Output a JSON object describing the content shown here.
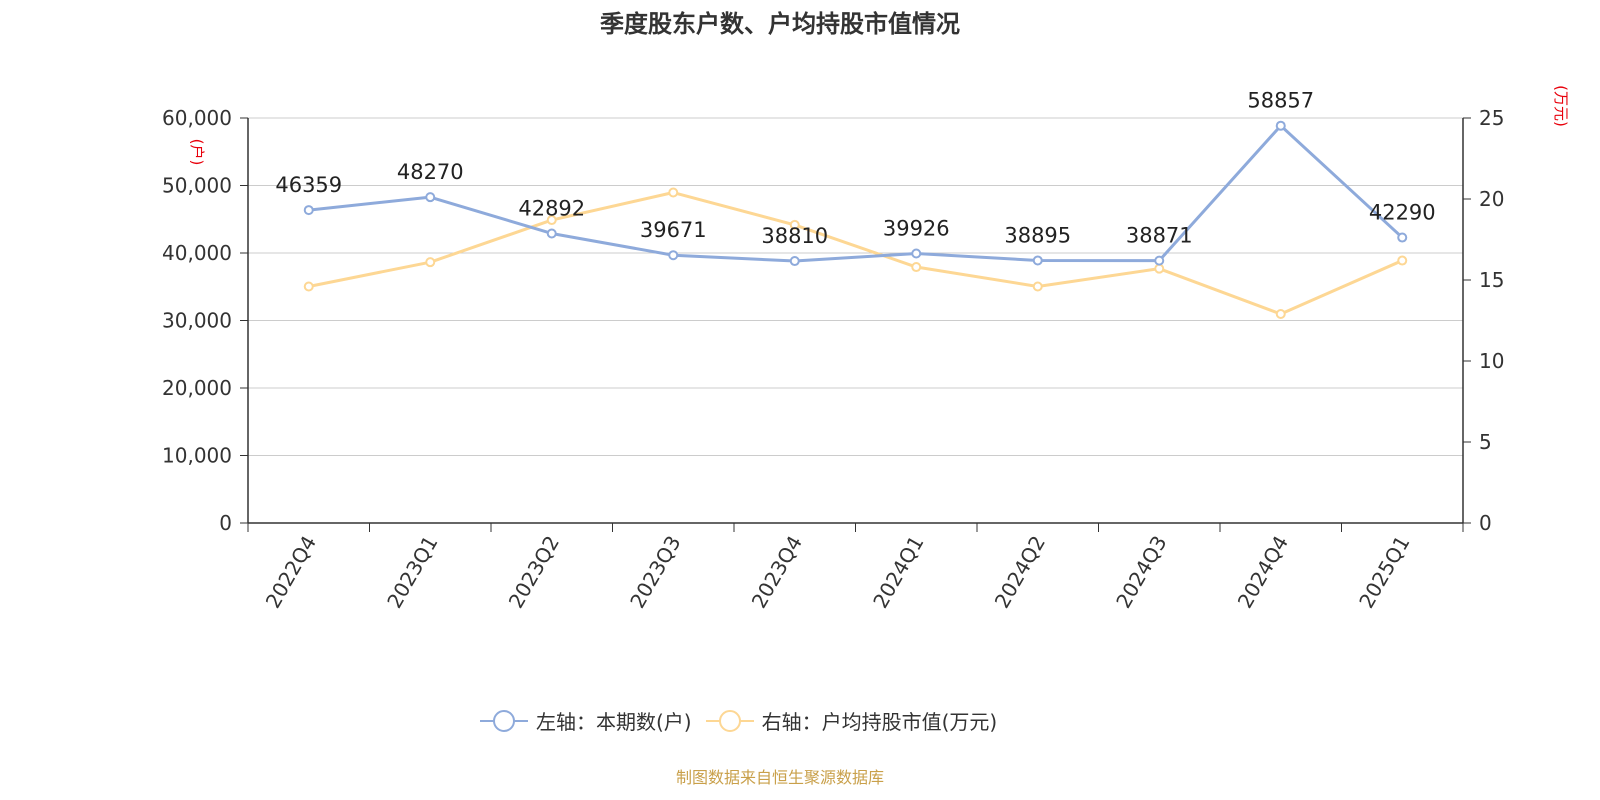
{
  "chart_data": {
    "type": "line",
    "title": "季度股东户数、户均持股市值情况",
    "categories": [
      "2022Q4",
      "2023Q1",
      "2023Q2",
      "2023Q3",
      "2023Q4",
      "2024Q1",
      "2024Q2",
      "2024Q3",
      "2024Q4",
      "2025Q1"
    ],
    "left_axis": {
      "unit_label": "(户)",
      "range": [
        0,
        60000
      ],
      "ticks": [
        "0",
        "10,000",
        "20,000",
        "30,000",
        "40,000",
        "50,000",
        "60,000"
      ]
    },
    "right_axis": {
      "unit_label": "(万元)",
      "range": [
        0,
        25
      ],
      "ticks": [
        "0",
        "5",
        "10",
        "15",
        "20",
        "25"
      ]
    },
    "series": [
      {
        "name": "左轴：本期数(户)",
        "axis": "left",
        "color": "#8eaadb",
        "values": [
          46359,
          48270,
          42892,
          39671,
          38810,
          39926,
          38895,
          38871,
          58857,
          42290
        ],
        "labels": [
          "46359",
          "48270",
          "42892",
          "39671",
          "38810",
          "39926",
          "38895",
          "38871",
          "58857",
          "42290"
        ]
      },
      {
        "name": "右轴：户均持股市值(万元)",
        "axis": "right",
        "color": "#fdd794",
        "values": [
          14.6,
          16.1,
          18.7,
          20.4,
          18.4,
          15.8,
          14.6,
          15.7,
          12.9,
          16.2
        ]
      }
    ],
    "grid": true,
    "legend_position": "bottom"
  },
  "colors": {
    "left_unit": "#e8000b",
    "right_unit": "#e8000b",
    "source": "#c9a04a"
  },
  "source_text": "制图数据来自恒生聚源数据库"
}
